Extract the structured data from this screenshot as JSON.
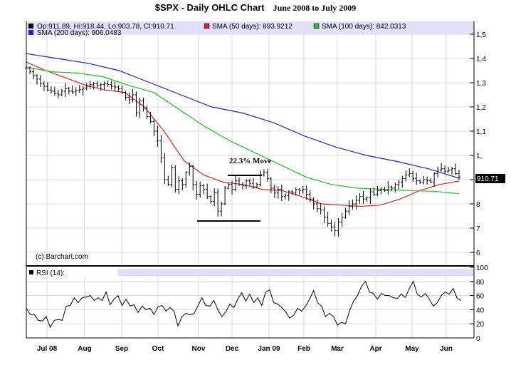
{
  "title": "$SPX - Daily OHLC Chart",
  "subtitle": "June 2008 to July 2009",
  "legend": {
    "ohlc": "Op:911.89, Hi:918.44, Lo:903.78, Cl:910.71",
    "sma50": "SMA (50 days): 893.9212",
    "sma100": "SMA (100 days): 842.0313",
    "sma200": "SMA (200 days): 906.0483",
    "rsi": "RSI (14):"
  },
  "colors": {
    "ohlc": "#000000",
    "sma50": "#e02020",
    "sma100": "#20c020",
    "sma200": "#2020e0",
    "legend_bg": "#e0e0fa"
  },
  "copyright": "(c) Barchart.com",
  "last_price_label": "910.71",
  "annotation": "22.3% Move",
  "chart_data": [
    {
      "type": "line",
      "title": "$SPX - Daily OHLC Chart",
      "price_ticks": [
        {
          "v": 1500,
          "label": "1,5"
        },
        {
          "v": 1400,
          "label": "1,4"
        },
        {
          "v": 1300,
          "label": "1,3"
        },
        {
          "v": 1200,
          "label": "1,2"
        },
        {
          "v": 1100,
          "label": "1,1"
        },
        {
          "v": 1000,
          "label": "1,"
        },
        {
          "v": 800,
          "label": "8"
        },
        {
          "v": 700,
          "label": "7"
        },
        {
          "v": 600,
          "label": "6"
        }
      ],
      "ylim": [
        560,
        1500
      ],
      "x_labels": [
        "Jul 08",
        "Aug",
        "Sep",
        "Oct",
        "Nov",
        "Dec",
        "Jan 09",
        "Feb",
        "Mar",
        "Apr",
        "May",
        "Jun"
      ],
      "closes": [
        1360,
        1345,
        1330,
        1315,
        1295,
        1285,
        1270,
        1265,
        1255,
        1250,
        1265,
        1275,
        1265,
        1262,
        1268,
        1272,
        1278,
        1285,
        1292,
        1295,
        1290,
        1292,
        1295,
        1292,
        1285,
        1282,
        1275,
        1260,
        1240,
        1230,
        1250,
        1175,
        1225,
        1195,
        1160,
        1140,
        1100,
        1060,
        990,
        900,
        880,
        950,
        860,
        895,
        880,
        930,
        955,
        880,
        840,
        875,
        860,
        830,
        810,
        845,
        770,
        800,
        865,
        880,
        860,
        895,
        880,
        875,
        895,
        885,
        870,
        880,
        920,
        930,
        905,
        865,
        845,
        860,
        830,
        835,
        850,
        845,
        860,
        855,
        860,
        840,
        820,
        800,
        780,
        775,
        745,
        720,
        705,
        690,
        725,
        745,
        770,
        790,
        800,
        815,
        830,
        820,
        825,
        850,
        840,
        855,
        860,
        855,
        870,
        865,
        880,
        890,
        905,
        920,
        925,
        905,
        895,
        890,
        900,
        895,
        890,
        925,
        940,
        945,
        935,
        940,
        945,
        925,
        911
      ],
      "series": [
        {
          "name": "SMA (50 days)",
          "color": "#e02020",
          "values": [
            1385,
            1350,
            1320,
            1290,
            1270,
            1260,
            1200,
            1100,
            980,
            920,
            890,
            880,
            860,
            855,
            830,
            800,
            795,
            790,
            795,
            820,
            855,
            880,
            894
          ]
        },
        {
          "name": "SMA (100 days)",
          "color": "#20c020",
          "values": [
            1365,
            1345,
            1340,
            1325,
            1290,
            1260,
            1190,
            1120,
            1060,
            1010,
            960,
            910,
            880,
            865,
            860,
            855,
            852,
            842
          ]
        },
        {
          "name": "SMA (200 days)",
          "color": "#2020e0",
          "values": [
            1420,
            1400,
            1380,
            1350,
            1300,
            1250,
            1200,
            1175,
            1135,
            1080,
            1035,
            1000,
            975,
            945,
            906
          ]
        }
      ],
      "annotation_range": [
        760,
        930
      ]
    },
    {
      "type": "line",
      "title": "RSI (14)",
      "ylim": [
        0,
        100
      ],
      "y_ticks": [
        100,
        80,
        60,
        40,
        20,
        0
      ],
      "values": [
        42,
        33,
        33,
        25,
        24,
        30,
        15,
        25,
        26,
        25,
        45,
        46,
        57,
        50,
        57,
        58,
        60,
        53,
        57,
        53,
        65,
        47,
        55,
        60,
        46,
        55,
        45,
        47,
        36,
        45,
        40,
        42,
        33,
        44,
        46,
        38,
        43,
        38,
        17,
        30,
        35,
        33,
        34,
        45,
        57,
        46,
        45,
        53,
        40,
        30,
        37,
        48,
        43,
        55,
        64,
        52,
        62,
        50,
        57,
        46,
        65,
        68,
        50,
        48,
        43,
        37,
        28,
        32,
        42,
        38,
        45,
        55,
        67,
        50,
        45,
        30,
        35,
        30,
        18,
        22,
        20,
        38,
        52,
        60,
        73,
        80,
        65,
        63,
        55,
        63,
        60,
        60,
        57,
        56,
        62,
        57,
        70,
        80,
        62,
        58,
        63,
        55,
        45,
        50,
        60,
        65,
        62,
        70,
        56,
        53
      ]
    }
  ]
}
